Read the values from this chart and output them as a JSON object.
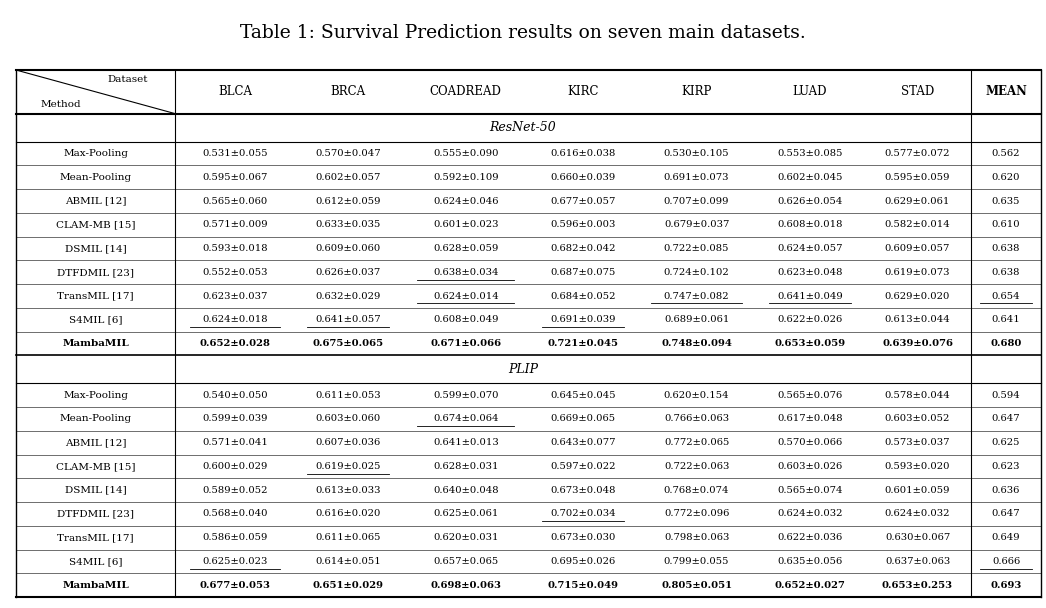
{
  "title": "Table 1: Survival Prediction results on seven main datasets.",
  "col_headers": [
    "BLCA",
    "BRCA",
    "COADREAD",
    "KIRC",
    "KIRP",
    "LUAD",
    "STAD",
    "MEAN"
  ],
  "resnet_header": "ResNet-50",
  "plip_header": "PLIP",
  "resnet_rows": [
    {
      "method": "Max-Pooling",
      "cite": "",
      "vals": [
        "0.531±0.055",
        "0.570±0.047",
        "0.555±0.090",
        "0.616±0.038",
        "0.530±0.105",
        "0.553±0.085",
        "0.577±0.072",
        "0.562"
      ],
      "underline": []
    },
    {
      "method": "Mean-Pooling",
      "cite": "",
      "vals": [
        "0.595±0.067",
        "0.602±0.057",
        "0.592±0.109",
        "0.660±0.039",
        "0.691±0.073",
        "0.602±0.045",
        "0.595±0.059",
        "0.620"
      ],
      "underline": []
    },
    {
      "method": "ABMIL",
      "cite": "[12]",
      "vals": [
        "0.565±0.060",
        "0.612±0.059",
        "0.624±0.046",
        "0.677±0.057",
        "0.707±0.099",
        "0.626±0.054",
        "0.629±0.061",
        "0.635"
      ],
      "underline": []
    },
    {
      "method": "CLAM-MB",
      "cite": "[15]",
      "vals": [
        "0.571±0.009",
        "0.633±0.035",
        "0.601±0.023",
        "0.596±0.003",
        "0.679±0.037",
        "0.608±0.018",
        "0.582±0.014",
        "0.610"
      ],
      "underline": []
    },
    {
      "method": "DSMIL",
      "cite": "[14]",
      "vals": [
        "0.593±0.018",
        "0.609±0.060",
        "0.628±0.059",
        "0.682±0.042",
        "0.722±0.085",
        "0.624±0.057",
        "0.609±0.057",
        "0.638"
      ],
      "underline": []
    },
    {
      "method": "DTFDMIL",
      "cite": "[23]",
      "vals": [
        "0.552±0.053",
        "0.626±0.037",
        "0.638±0.034",
        "0.687±0.075",
        "0.724±0.102",
        "0.623±0.048",
        "0.619±0.073",
        "0.638"
      ],
      "underline": [
        2
      ]
    },
    {
      "method": "TransMIL",
      "cite": "[17]",
      "vals": [
        "0.623±0.037",
        "0.632±0.029",
        "0.624±0.014",
        "0.684±0.052",
        "0.747±0.082",
        "0.641±0.049",
        "0.629±0.020",
        "0.654"
      ],
      "underline": [
        2,
        4,
        5,
        7
      ]
    },
    {
      "method": "S4MIL",
      "cite": "[6]",
      "vals": [
        "0.624±0.018",
        "0.641±0.057",
        "0.608±0.049",
        "0.691±0.039",
        "0.689±0.061",
        "0.622±0.026",
        "0.613±0.044",
        "0.641"
      ],
      "underline": [
        0,
        1,
        3
      ]
    },
    {
      "method": "MambaMIL",
      "cite": "",
      "vals": [
        "0.652±0.028",
        "0.675±0.065",
        "0.671±0.066",
        "0.721±0.045",
        "0.748±0.094",
        "0.653±0.059",
        "0.639±0.076",
        "0.680"
      ],
      "underline": [],
      "bold": true
    }
  ],
  "plip_rows": [
    {
      "method": "Max-Pooling",
      "cite": "",
      "vals": [
        "0.540±0.050",
        "0.611±0.053",
        "0.599±0.070",
        "0.645±0.045",
        "0.620±0.154",
        "0.565±0.076",
        "0.578±0.044",
        "0.594"
      ],
      "underline": []
    },
    {
      "method": "Mean-Pooling",
      "cite": "",
      "vals": [
        "0.599±0.039",
        "0.603±0.060",
        "0.674±0.064",
        "0.669±0.065",
        "0.766±0.063",
        "0.617±0.048",
        "0.603±0.052",
        "0.647"
      ],
      "underline": [
        2
      ]
    },
    {
      "method": "ABMIL",
      "cite": "[12]",
      "vals": [
        "0.571±0.041",
        "0.607±0.036",
        "0.641±0.013",
        "0.643±0.077",
        "0.772±0.065",
        "0.570±0.066",
        "0.573±0.037",
        "0.625"
      ],
      "underline": []
    },
    {
      "method": "CLAM-MB",
      "cite": "[15]",
      "vals": [
        "0.600±0.029",
        "0.619±0.025",
        "0.628±0.031",
        "0.597±0.022",
        "0.722±0.063",
        "0.603±0.026",
        "0.593±0.020",
        "0.623"
      ],
      "underline": [
        1
      ]
    },
    {
      "method": "DSMIL",
      "cite": "[14]",
      "vals": [
        "0.589±0.052",
        "0.613±0.033",
        "0.640±0.048",
        "0.673±0.048",
        "0.768±0.074",
        "0.565±0.074",
        "0.601±0.059",
        "0.636"
      ],
      "underline": []
    },
    {
      "method": "DTFDMIL",
      "cite": "[23]",
      "vals": [
        "0.568±0.040",
        "0.616±0.020",
        "0.625±0.061",
        "0.702±0.034",
        "0.772±0.096",
        "0.624±0.032",
        "0.624±0.032",
        "0.647"
      ],
      "underline": [
        3
      ]
    },
    {
      "method": "TransMIL",
      "cite": "[17]",
      "vals": [
        "0.586±0.059",
        "0.611±0.065",
        "0.620±0.031",
        "0.673±0.030",
        "0.798±0.063",
        "0.622±0.036",
        "0.630±0.067",
        "0.649"
      ],
      "underline": []
    },
    {
      "method": "S4MIL",
      "cite": "[6]",
      "vals": [
        "0.625±0.023",
        "0.614±0.051",
        "0.657±0.065",
        "0.695±0.026",
        "0.799±0.055",
        "0.635±0.056",
        "0.637±0.063",
        "0.666"
      ],
      "underline": [
        0,
        7
      ]
    },
    {
      "method": "MambaMIL",
      "cite": "",
      "vals": [
        "0.677±0.053",
        "0.651±0.029",
        "0.698±0.063",
        "0.715±0.049",
        "0.805±0.051",
        "0.652±0.027",
        "0.653±0.253",
        "0.693"
      ],
      "underline": [],
      "bold": true
    }
  ]
}
